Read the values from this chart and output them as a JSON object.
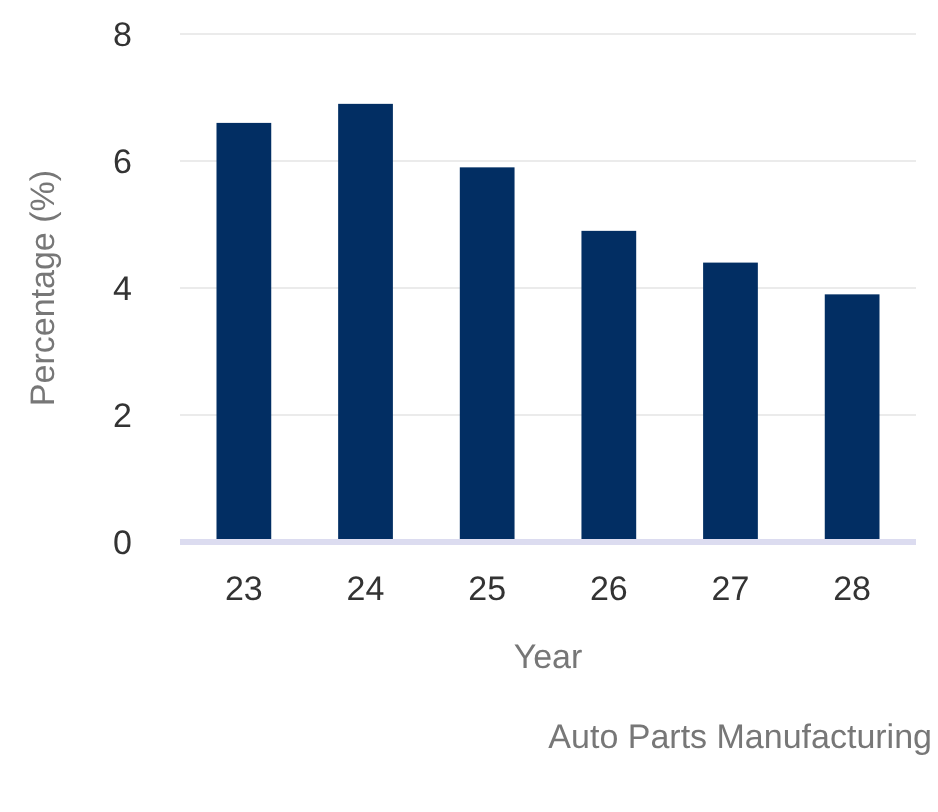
{
  "chart_data": {
    "type": "bar",
    "xlabel": "Year",
    "ylabel": "Percentage (%)",
    "categories": [
      "23",
      "24",
      "25",
      "26",
      "27",
      "28"
    ],
    "values": [
      6.6,
      6.9,
      5.9,
      4.9,
      4.4,
      3.9
    ],
    "color": "#022e63",
    "ylim": [
      0,
      8
    ],
    "yticks": [
      0,
      2,
      4,
      6,
      8
    ],
    "grid": "y",
    "annotations": [
      "Auto Parts Manufacturing"
    ]
  }
}
